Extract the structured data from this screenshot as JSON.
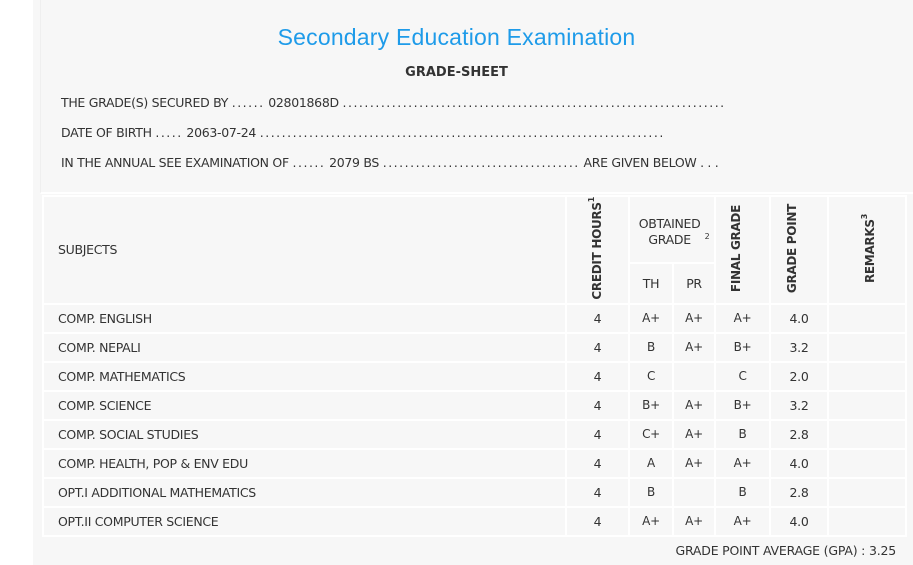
{
  "header": {
    "title": "Secondary Education Examination",
    "subtitle": "GRADE-SHEET"
  },
  "info": {
    "secured_by_label": "THE GRADE(S) SECURED BY",
    "symbol_number": "02801868D",
    "dob_label": "DATE OF BIRTH",
    "dob": "2063-07-24",
    "exam_label": "IN THE ANNUAL SEE EXAMINATION OF",
    "exam_year": "2079 BS",
    "exam_suffix": "ARE GIVEN BELOW . . ."
  },
  "table": {
    "headers": {
      "subjects": "SUBJECTS",
      "credit_hours": "CREDIT HOURS",
      "credit_sup": "1",
      "obtained_grade": "OBTAINED GRADE",
      "obtained_sup": "2",
      "th": "TH",
      "pr": "PR",
      "final_grade": "FINAL GRADE",
      "grade_point": "GRADE POINT",
      "remarks": "REMARKS",
      "remarks_sup": "3"
    },
    "rows": [
      {
        "subject": "COMP. ENGLISH",
        "credit": "4",
        "th": "A+",
        "pr": "A+",
        "final": "A+",
        "gp": "4.0",
        "remarks": ""
      },
      {
        "subject": "COMP. NEPALI",
        "credit": "4",
        "th": "B",
        "pr": "A+",
        "final": "B+",
        "gp": "3.2",
        "remarks": ""
      },
      {
        "subject": "COMP. MATHEMATICS",
        "credit": "4",
        "th": "C",
        "pr": "",
        "final": "C",
        "gp": "2.0",
        "remarks": ""
      },
      {
        "subject": "COMP. SCIENCE",
        "credit": "4",
        "th": "B+",
        "pr": "A+",
        "final": "B+",
        "gp": "3.2",
        "remarks": ""
      },
      {
        "subject": "COMP. SOCIAL STUDIES",
        "credit": "4",
        "th": "C+",
        "pr": "A+",
        "final": "B",
        "gp": "2.8",
        "remarks": ""
      },
      {
        "subject": "COMP. HEALTH, POP & ENV EDU",
        "credit": "4",
        "th": "A",
        "pr": "A+",
        "final": "A+",
        "gp": "4.0",
        "remarks": ""
      },
      {
        "subject": "OPT.I ADDITIONAL MATHEMATICS",
        "credit": "4",
        "th": "B",
        "pr": "",
        "final": "B",
        "gp": "2.8",
        "remarks": ""
      },
      {
        "subject": "OPT.II COMPUTER SCIENCE",
        "credit": "4",
        "th": "A+",
        "pr": "A+",
        "final": "A+",
        "gp": "4.0",
        "remarks": ""
      }
    ]
  },
  "gpa": {
    "label": "GRADE POINT AVERAGE (GPA) :",
    "value": "3.25"
  },
  "colors": {
    "title": "#1e9be9",
    "panel": "#f7f7f7",
    "text": "#333333"
  }
}
